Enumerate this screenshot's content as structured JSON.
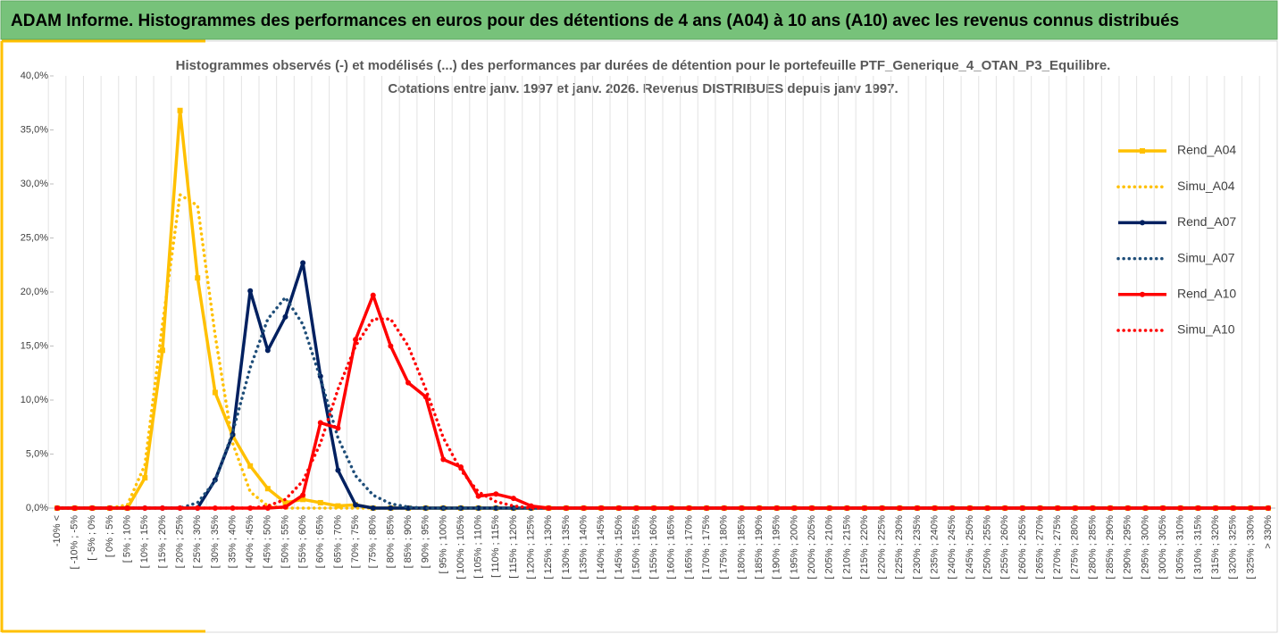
{
  "header": {
    "title": "ADAM Informe. Histogrammes des performances en euros pour des détentions de 4 ans (A04) à 10 ans (A10) avec les revenus connus distribués"
  },
  "chart_data": {
    "type": "line",
    "title": "Histogrammes observés (-) et modélisés (...) des performances par durées de détention pour le portefeuille PTF_Generique_4_OTAN_P3_Equilibre.",
    "subtitle": "Cotations entre janv. 1997 et janv. 2026. Revenus DISTRIBUES depuis janv 1997.",
    "categories": [
      "-10% <",
      "[ -10% ; -5%",
      "[ -5% ; 0%",
      "[ 0% ; 5%",
      "[ 5% ; 10%",
      "[ 10% ; 15%",
      "[ 15% ; 20%",
      "[ 20% ; 25%",
      "[ 25% ; 30%",
      "[ 30% ; 35%",
      "[ 35% ; 40%",
      "[ 40% ; 45%",
      "[ 45% ; 50%",
      "[ 50% ; 55%",
      "[ 55% ; 60%",
      "[ 60% ; 65%",
      "[ 65% ; 70%",
      "[ 70% ; 75%",
      "[ 75% ; 80%",
      "[ 80% ; 85%",
      "[ 85% ; 90%",
      "[ 90% ; 95%",
      "[ 95% ; 100%",
      "[ 100% ; 105%",
      "[ 105% ; 110%",
      "[ 110% ; 115%",
      "[ 115% ; 120%",
      "[ 120% ; 125%",
      "[ 125% ; 130%",
      "[ 130% ; 135%",
      "[ 135% ; 140%",
      "[ 140% ; 145%",
      "[ 145% ; 150%",
      "[ 150% ; 155%",
      "[ 155% ; 160%",
      "[ 160% ; 165%",
      "[ 165% ; 170%",
      "[ 170% ; 175%",
      "[ 175% ; 180%",
      "[ 180% ; 185%",
      "[ 185% ; 190%",
      "[ 190% ; 195%",
      "[ 195% ; 200%",
      "[ 200% ; 205%",
      "[ 205% ; 210%",
      "[ 210% ; 215%",
      "[ 215% ; 220%",
      "[ 220% ; 225%",
      "[ 225% ; 230%",
      "[ 230% ; 235%",
      "[ 235% ; 240%",
      "[ 240% ; 245%",
      "[ 245% ; 250%",
      "[ 250% ; 255%",
      "[ 255% ; 260%",
      "[ 260% ; 265%",
      "[ 265% ; 270%",
      "[ 270% ; 275%",
      "[ 275% ; 280%",
      "[ 280% ; 285%",
      "[ 285% ; 290%",
      "[ 290% ; 295%",
      "[ 295% ; 300%",
      "[ 300% ; 305%",
      "[ 305% ; 310%",
      "[ 310% ; 315%",
      "[ 315% ; 320%",
      "[ 320% ; 325%",
      "[ 325% ; 330%",
      "> 330%"
    ],
    "series": [
      {
        "name": "Rend_A04",
        "color": "#ffc000",
        "style": "solid",
        "marker": "square",
        "values": [
          0,
          0,
          0,
          0,
          0,
          2.8,
          14.6,
          36.8,
          21.3,
          10.7,
          6.7,
          3.9,
          1.8,
          0.5,
          0.8,
          0.5,
          0.2,
          0.3,
          0,
          0,
          0,
          0,
          0,
          0,
          0,
          0,
          0,
          0,
          0,
          0,
          0,
          0,
          0,
          0,
          0,
          0,
          0,
          0,
          0,
          0,
          0,
          0,
          0,
          0,
          0,
          0,
          0,
          0,
          0,
          0,
          0,
          0,
          0,
          0,
          0,
          0,
          0,
          0,
          0,
          0,
          0,
          0,
          0,
          0,
          0,
          0,
          0,
          0,
          0,
          0
        ]
      },
      {
        "name": "Simu_A04",
        "color": "#ffc000",
        "style": "dotted",
        "values": [
          0,
          0,
          0,
          0,
          0.3,
          4,
          17,
          29,
          28,
          16,
          6,
          1.5,
          0.2,
          0,
          0,
          0,
          0,
          0,
          0,
          0,
          0,
          0,
          0,
          0,
          0,
          0,
          0,
          0,
          0,
          0,
          0,
          0,
          0,
          0,
          0,
          0,
          0,
          0,
          0,
          0,
          0,
          0,
          0,
          0,
          0,
          0,
          0,
          0,
          0,
          0,
          0,
          0,
          0,
          0,
          0,
          0,
          0,
          0,
          0,
          0,
          0,
          0,
          0,
          0,
          0,
          0,
          0,
          0,
          0,
          0
        ]
      },
      {
        "name": "Rend_A07",
        "color": "#002060",
        "style": "solid",
        "marker": "circle",
        "values": [
          0,
          0,
          0,
          0,
          0,
          0,
          0,
          0,
          0,
          2.6,
          6.8,
          20.1,
          14.6,
          17.7,
          22.7,
          12.2,
          3.5,
          0.3,
          0,
          0,
          0,
          0,
          0,
          0,
          0,
          0,
          0,
          0,
          0,
          0,
          0,
          0,
          0,
          0,
          0,
          0,
          0,
          0,
          0,
          0,
          0,
          0,
          0,
          0,
          0,
          0,
          0,
          0,
          0,
          0,
          0,
          0,
          0,
          0,
          0,
          0,
          0,
          0,
          0,
          0,
          0,
          0,
          0,
          0,
          0,
          0,
          0,
          0,
          0,
          0
        ]
      },
      {
        "name": "Simu_A07",
        "color": "#1f4e79",
        "style": "dotted",
        "values": [
          0,
          0,
          0,
          0,
          0,
          0,
          0,
          0,
          0.5,
          2.5,
          7,
          13,
          17.5,
          19.5,
          17,
          12,
          6.5,
          3,
          1.2,
          0.4,
          0.1,
          0,
          0,
          0,
          0,
          0,
          0,
          0,
          0,
          0,
          0,
          0,
          0,
          0,
          0,
          0,
          0,
          0,
          0,
          0,
          0,
          0,
          0,
          0,
          0,
          0,
          0,
          0,
          0,
          0,
          0,
          0,
          0,
          0,
          0,
          0,
          0,
          0,
          0,
          0,
          0,
          0,
          0,
          0,
          0,
          0,
          0,
          0,
          0,
          0
        ]
      },
      {
        "name": "Rend_A10",
        "color": "#ff0000",
        "style": "solid",
        "marker": "circle",
        "values": [
          0,
          0,
          0,
          0,
          0,
          0,
          0,
          0,
          0,
          0,
          0,
          0,
          0,
          0.1,
          1.2,
          7.9,
          7.4,
          15.6,
          19.7,
          15,
          11.6,
          10.3,
          4.5,
          3.8,
          1.1,
          1.3,
          0.9,
          0.2,
          0,
          0,
          0,
          0,
          0,
          0,
          0,
          0,
          0,
          0,
          0,
          0,
          0,
          0,
          0,
          0,
          0,
          0,
          0,
          0,
          0,
          0,
          0,
          0,
          0,
          0,
          0,
          0,
          0,
          0,
          0,
          0,
          0,
          0,
          0,
          0,
          0,
          0,
          0,
          0,
          0,
          0
        ]
      },
      {
        "name": "Simu_A10",
        "color": "#ff0000",
        "style": "dotted",
        "values": [
          0,
          0,
          0,
          0,
          0,
          0,
          0,
          0,
          0,
          0,
          0,
          0,
          0.2,
          0.8,
          2.5,
          6,
          11,
          15,
          17.5,
          17.5,
          15,
          11,
          6.5,
          3.5,
          1.5,
          0.6,
          0.2,
          0,
          0,
          0,
          0,
          0,
          0,
          0,
          0,
          0,
          0,
          0,
          0,
          0,
          0,
          0,
          0,
          0,
          0,
          0,
          0,
          0,
          0,
          0,
          0,
          0,
          0,
          0,
          0,
          0,
          0,
          0,
          0,
          0,
          0,
          0,
          0,
          0,
          0,
          0,
          0,
          0,
          0,
          0
        ]
      }
    ],
    "ylim": [
      0,
      40
    ],
    "yticks": [
      {
        "value": 0,
        "label": "0,0%"
      },
      {
        "value": 5,
        "label": "5,0%"
      },
      {
        "value": 10,
        "label": "10,0%"
      },
      {
        "value": 15,
        "label": "15,0%"
      },
      {
        "value": 20,
        "label": "20,0%"
      },
      {
        "value": 25,
        "label": "25,0%"
      },
      {
        "value": 30,
        "label": "30,0%"
      },
      {
        "value": 35,
        "label": "35,0%"
      },
      {
        "value": 40,
        "label": "40,0%"
      }
    ],
    "grid": true,
    "legend": "right"
  }
}
